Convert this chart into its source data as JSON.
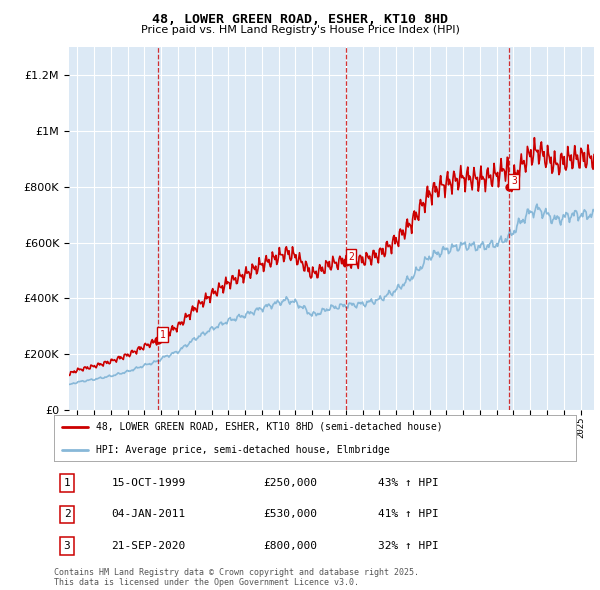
{
  "title": "48, LOWER GREEN ROAD, ESHER, KT10 8HD",
  "subtitle": "Price paid vs. HM Land Registry's House Price Index (HPI)",
  "legend_label_red": "48, LOWER GREEN ROAD, ESHER, KT10 8HD (semi-detached house)",
  "legend_label_blue": "HPI: Average price, semi-detached house, Elmbridge",
  "transactions": [
    {
      "num": 1,
      "date_str": "15-OCT-1999",
      "year": 1999.79,
      "price": 250000,
      "pct": "43% ↑ HPI"
    },
    {
      "num": 2,
      "date_str": "04-JAN-2011",
      "year": 2011.01,
      "price": 530000,
      "pct": "41% ↑ HPI"
    },
    {
      "num": 3,
      "date_str": "21-SEP-2020",
      "year": 2020.72,
      "price": 800000,
      "pct": "32% ↑ HPI"
    }
  ],
  "footer": "Contains HM Land Registry data © Crown copyright and database right 2025.\nThis data is licensed under the Open Government Licence v3.0.",
  "ylim": [
    0,
    1300000
  ],
  "xlim_start": 1994.5,
  "xlim_end": 2025.8,
  "bg_color": "#dce9f5",
  "grid_color": "#ffffff",
  "red_color": "#cc0000",
  "blue_color": "#88b8d8"
}
